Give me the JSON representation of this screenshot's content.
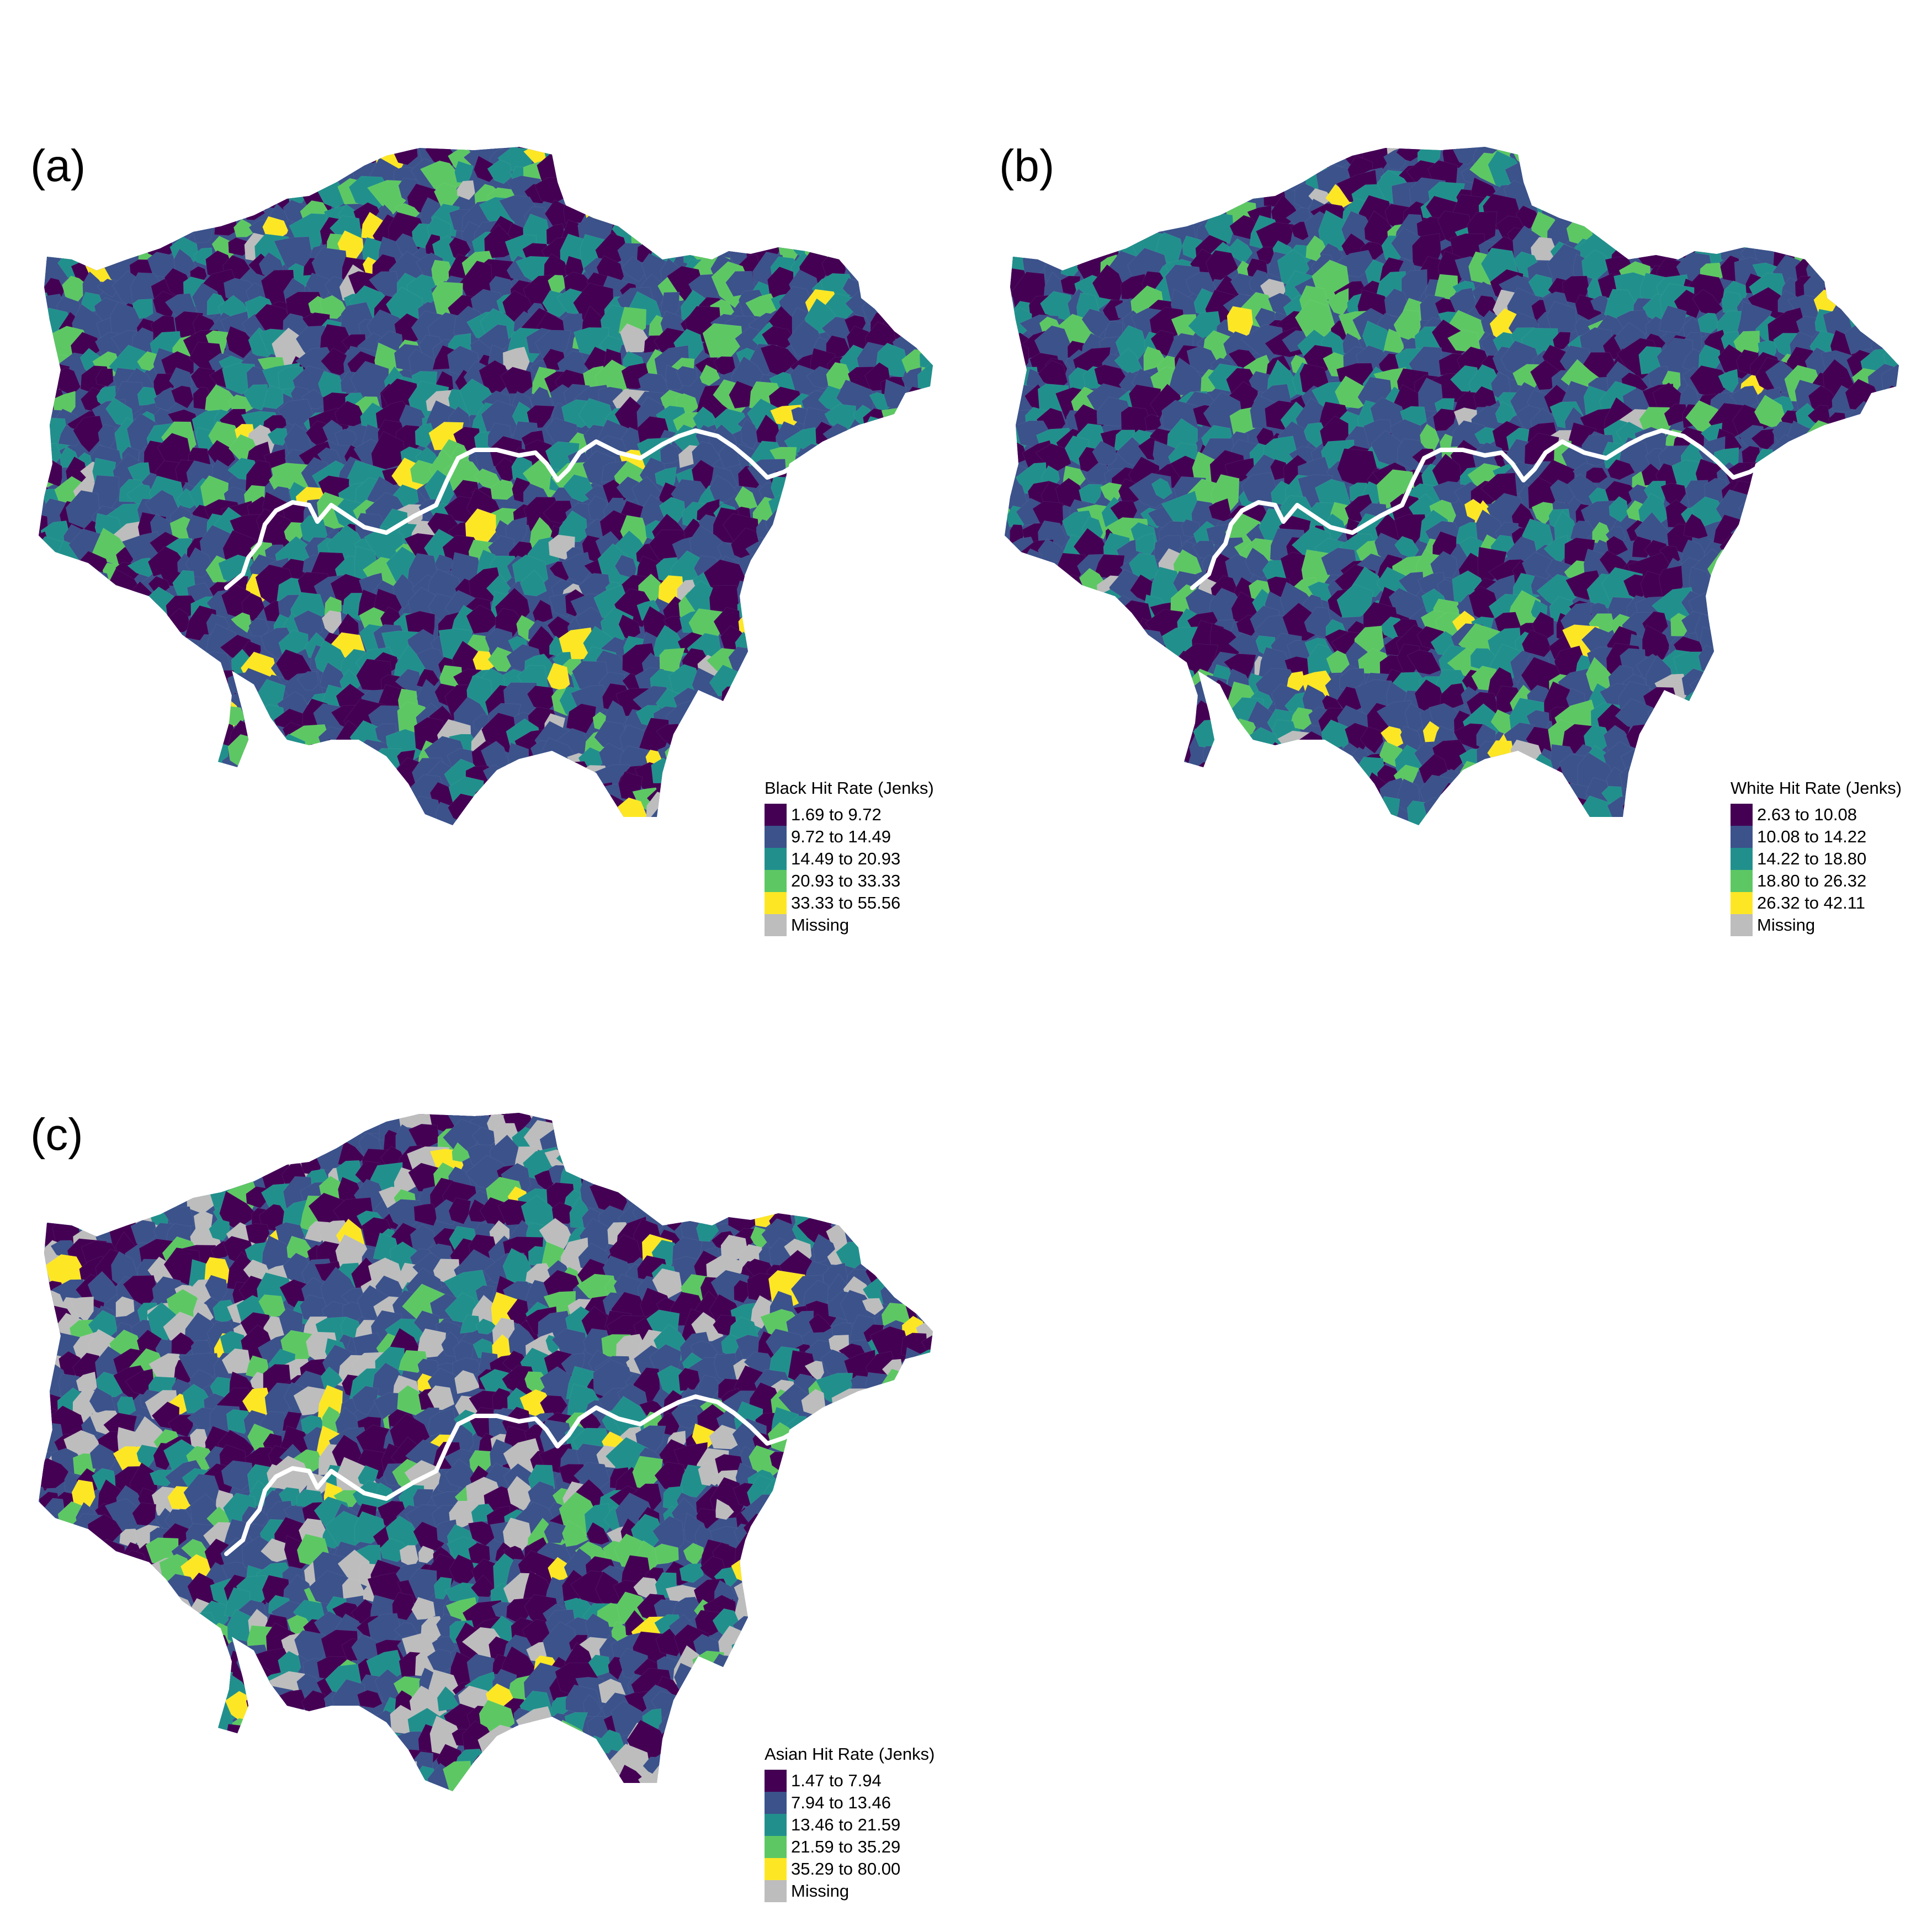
{
  "palette": {
    "c1": "#440154",
    "c2": "#3b528b",
    "c3": "#21908c",
    "c4": "#5dc863",
    "c5": "#fde725",
    "missing": "#bdbdbd",
    "river": "#ffffff"
  },
  "panels": [
    {
      "label": "(a)",
      "legend": {
        "title": "Black Hit Rate (Jenks)",
        "classes": [
          {
            "label": "1.69 to 9.72",
            "color": "#440154"
          },
          {
            "label": "9.72 to 14.49",
            "color": "#3b528b"
          },
          {
            "label": "14.49 to 20.93",
            "color": "#21908c"
          },
          {
            "label": "20.93 to 33.33",
            "color": "#5dc863"
          },
          {
            "label": "33.33 to 55.56",
            "color": "#fde725"
          },
          {
            "label": "Missing",
            "color": "#bdbdbd"
          }
        ]
      }
    },
    {
      "label": "(b)",
      "legend": {
        "title": "White Hit Rate (Jenks)",
        "classes": [
          {
            "label": "2.63 to 10.08",
            "color": "#440154"
          },
          {
            "label": "10.08 to 14.22",
            "color": "#3b528b"
          },
          {
            "label": "14.22 to 18.80",
            "color": "#21908c"
          },
          {
            "label": "18.80 to 26.32",
            "color": "#5dc863"
          },
          {
            "label": "26.32 to 42.11",
            "color": "#fde725"
          },
          {
            "label": "Missing",
            "color": "#bdbdbd"
          }
        ]
      }
    },
    {
      "label": "(c)",
      "legend": {
        "title": "Asian Hit Rate (Jenks)",
        "classes": [
          {
            "label": "1.47 to 7.94",
            "color": "#440154"
          },
          {
            "label": "7.94 to 13.46",
            "color": "#3b528b"
          },
          {
            "label": "13.46 to 21.59",
            "color": "#21908c"
          },
          {
            "label": "21.59 to 35.29",
            "color": "#5dc863"
          },
          {
            "label": "35.29 to 80.00",
            "color": "#fde725"
          },
          {
            "label": "Missing",
            "color": "#bdbdbd"
          }
        ]
      }
    }
  ]
}
